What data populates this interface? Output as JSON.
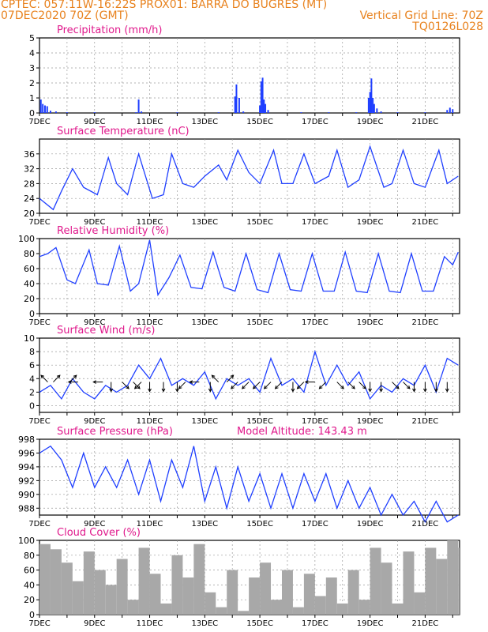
{
  "header": {
    "line1_left": "CPTEC:  057:11W-16:22S  PROX01: BARRA DO BUGRES (MT)",
    "line2_left": "07DEC2020 70Z (GMT)",
    "line2_right": "Vertical Grid Line: 70Z",
    "line3_right": "TQ0126L028"
  },
  "colors": {
    "header": "#e8821e",
    "title": "#e0198c",
    "line": "#1f3fff",
    "cloud": "#a8a8a8",
    "axis": "#000000"
  },
  "x_axis": {
    "ticks": [
      "7DEC",
      "9DEC",
      "11DEC",
      "13DEC",
      "15DEC",
      "17DEC",
      "19DEC",
      "21DEC"
    ],
    "range_days": [
      7,
      22.25
    ]
  },
  "chart_data": [
    {
      "id": "precip",
      "type": "bar",
      "title": "Precipitation (mm/h)",
      "ylim": [
        0,
        5
      ],
      "yticks": [
        "0",
        "1",
        "2",
        "3",
        "4",
        "5"
      ],
      "points": [
        [
          7.05,
          0.9
        ],
        [
          7.12,
          0.6
        ],
        [
          7.2,
          0.5
        ],
        [
          7.28,
          0.45
        ],
        [
          7.4,
          0.15
        ],
        [
          7.6,
          0.1
        ],
        [
          8.0,
          0.05
        ],
        [
          9.0,
          0.05
        ],
        [
          10.5,
          0.05
        ],
        [
          10.6,
          0.9
        ],
        [
          10.7,
          0.1
        ],
        [
          12.0,
          0.05
        ],
        [
          13.5,
          0.05
        ],
        [
          14.1,
          1.1
        ],
        [
          14.15,
          1.9
        ],
        [
          14.25,
          1.0
        ],
        [
          14.4,
          0.1
        ],
        [
          15.0,
          0.5
        ],
        [
          15.05,
          2.1
        ],
        [
          15.1,
          2.35
        ],
        [
          15.15,
          0.9
        ],
        [
          15.2,
          0.6
        ],
        [
          15.3,
          0.2
        ],
        [
          16.5,
          0.05
        ],
        [
          17.5,
          0.05
        ],
        [
          18.5,
          0.05
        ],
        [
          18.95,
          1.0
        ],
        [
          19.0,
          1.4
        ],
        [
          19.05,
          2.3
        ],
        [
          19.1,
          1.0
        ],
        [
          19.15,
          0.6
        ],
        [
          19.25,
          0.3
        ],
        [
          19.4,
          0.1
        ],
        [
          20.0,
          0.05
        ],
        [
          21.0,
          0.05
        ],
        [
          21.8,
          0.2
        ],
        [
          21.9,
          0.35
        ],
        [
          22.0,
          0.25
        ]
      ]
    },
    {
      "id": "temp",
      "type": "line",
      "title": "Surface Temperature (nC)",
      "ylim": [
        20,
        40
      ],
      "yticks": [
        "20",
        "24",
        "28",
        "32",
        "36"
      ],
      "series": [
        {
          "x": [
            7.0,
            7.5,
            7.8,
            8.2,
            8.6,
            9.1,
            9.5,
            9.8,
            10.2,
            10.6,
            11.1,
            11.5,
            11.8,
            12.2,
            12.6,
            13.0,
            13.5,
            13.8,
            14.2,
            14.6,
            15.0,
            15.5,
            15.8,
            16.2,
            16.6,
            17.0,
            17.5,
            17.8,
            18.2,
            18.6,
            19.0,
            19.5,
            19.8,
            20.2,
            20.6,
            21.0,
            21.5,
            21.8,
            22.2
          ],
          "y": [
            24,
            21,
            26,
            32,
            27,
            25,
            35,
            28,
            25,
            36,
            24,
            25,
            36,
            28,
            27,
            30,
            33,
            29,
            37,
            31,
            28,
            37,
            28,
            28,
            36,
            28,
            30,
            37,
            27,
            29,
            38,
            27,
            28,
            37,
            28,
            27,
            37,
            28,
            30
          ]
        }
      ]
    },
    {
      "id": "rh",
      "type": "line",
      "title": "Relative Humidity (%)",
      "ylim": [
        0,
        100
      ],
      "yticks": [
        "0",
        "20",
        "40",
        "60",
        "80",
        "100"
      ],
      "series": [
        {
          "x": [
            7.0,
            7.3,
            7.6,
            8.0,
            8.3,
            8.8,
            9.1,
            9.5,
            9.9,
            10.3,
            10.6,
            11.0,
            11.3,
            11.7,
            12.1,
            12.5,
            12.9,
            13.3,
            13.7,
            14.1,
            14.5,
            14.9,
            15.3,
            15.7,
            16.1,
            16.5,
            16.9,
            17.3,
            17.7,
            18.1,
            18.5,
            18.9,
            19.3,
            19.7,
            20.1,
            20.5,
            20.9,
            21.3,
            21.7,
            22.0,
            22.2
          ],
          "y": [
            76,
            80,
            88,
            45,
            40,
            85,
            40,
            38,
            90,
            30,
            40,
            98,
            25,
            48,
            78,
            35,
            33,
            82,
            35,
            30,
            80,
            32,
            28,
            80,
            32,
            30,
            80,
            30,
            30,
            82,
            30,
            28,
            80,
            30,
            28,
            80,
            30,
            30,
            76,
            65,
            82
          ]
        }
      ]
    },
    {
      "id": "wind",
      "type": "line",
      "title": "Surface Wind (m/s)",
      "ylim": [
        -1,
        10
      ],
      "yticks": [
        "0",
        "2",
        "4",
        "6",
        "8",
        "10"
      ],
      "series": [
        {
          "x": [
            7.0,
            7.4,
            7.8,
            8.2,
            8.6,
            9.0,
            9.4,
            9.8,
            10.2,
            10.6,
            11.0,
            11.4,
            11.8,
            12.2,
            12.6,
            13.0,
            13.4,
            13.8,
            14.2,
            14.6,
            15.0,
            15.4,
            15.8,
            16.2,
            16.6,
            17.0,
            17.4,
            17.8,
            18.2,
            18.6,
            19.0,
            19.4,
            19.8,
            20.2,
            20.6,
            21.0,
            21.4,
            21.8,
            22.2
          ],
          "y": [
            2,
            3,
            1,
            4,
            2,
            1,
            3,
            2,
            3,
            6,
            4,
            7,
            3,
            4,
            3,
            5,
            1,
            4,
            3,
            4,
            2,
            7,
            3,
            4,
            2,
            8,
            3,
            6,
            3,
            5,
            1,
            3,
            2,
            4,
            3,
            6,
            2,
            7,
            6
          ]
        }
      ],
      "arrows": [
        [
          7.3,
          "NW"
        ],
        [
          7.5,
          "NE"
        ],
        [
          8.1,
          "NE"
        ],
        [
          8.4,
          "W"
        ],
        [
          9.3,
          "W"
        ],
        [
          9.6,
          "S"
        ],
        [
          10.0,
          "SE"
        ],
        [
          10.4,
          "SE"
        ],
        [
          10.7,
          "SW"
        ],
        [
          11.0,
          "S"
        ],
        [
          11.5,
          "S"
        ],
        [
          12.0,
          "S"
        ],
        [
          12.3,
          "SW"
        ],
        [
          12.8,
          "W"
        ],
        [
          13.2,
          "S"
        ],
        [
          13.5,
          "NW"
        ],
        [
          13.8,
          "NE"
        ],
        [
          14.2,
          "SW"
        ],
        [
          14.6,
          "SW"
        ],
        [
          15.0,
          "SW"
        ],
        [
          15.4,
          "SW"
        ],
        [
          15.8,
          "SW"
        ],
        [
          16.2,
          "S"
        ],
        [
          16.6,
          "SW"
        ],
        [
          17.0,
          "W"
        ],
        [
          17.4,
          "SW"
        ],
        [
          17.8,
          "SE"
        ],
        [
          18.2,
          "SE"
        ],
        [
          18.6,
          "SE"
        ],
        [
          19.0,
          "S"
        ],
        [
          19.4,
          "S"
        ],
        [
          19.8,
          "SE"
        ],
        [
          20.2,
          "SE"
        ],
        [
          20.6,
          "S"
        ],
        [
          21.0,
          "S"
        ],
        [
          21.4,
          "S"
        ],
        [
          21.8,
          "S"
        ]
      ]
    },
    {
      "id": "press",
      "type": "line",
      "title": "Surface Pressure (hPa)",
      "note": "Model Altitude: 143.43 m",
      "ylim": [
        987,
        998
      ],
      "yticks": [
        "988",
        "990",
        "992",
        "994",
        "996",
        "998"
      ],
      "series": [
        {
          "x": [
            7.0,
            7.4,
            7.8,
            8.2,
            8.6,
            9.0,
            9.4,
            9.8,
            10.2,
            10.6,
            11.0,
            11.4,
            11.8,
            12.2,
            12.6,
            13.0,
            13.4,
            13.8,
            14.2,
            14.6,
            15.0,
            15.4,
            15.8,
            16.2,
            16.6,
            17.0,
            17.4,
            17.8,
            18.2,
            18.6,
            19.0,
            19.4,
            19.8,
            20.2,
            20.6,
            21.0,
            21.4,
            21.8,
            22.2
          ],
          "y": [
            996,
            997,
            995,
            991,
            996,
            991,
            994,
            991,
            995,
            990,
            995,
            989,
            995,
            991,
            997,
            989,
            994,
            988,
            994,
            989,
            993,
            988,
            993,
            988,
            993,
            989,
            993,
            988,
            992,
            988,
            991,
            987,
            990,
            987,
            989,
            986,
            989,
            986,
            987
          ]
        }
      ]
    },
    {
      "id": "cloud",
      "type": "bar",
      "title": "Cloud Cover (%)",
      "ylim": [
        0,
        100
      ],
      "yticks": [
        "0",
        "20",
        "40",
        "60",
        "80",
        "100"
      ],
      "series_note": "hourly cloud cover bars",
      "points": [
        [
          7.0,
          95
        ],
        [
          7.4,
          88
        ],
        [
          7.8,
          70
        ],
        [
          8.2,
          45
        ],
        [
          8.6,
          85
        ],
        [
          9.0,
          60
        ],
        [
          9.4,
          40
        ],
        [
          9.8,
          75
        ],
        [
          10.2,
          20
        ],
        [
          10.6,
          90
        ],
        [
          11.0,
          55
        ],
        [
          11.4,
          15
        ],
        [
          11.8,
          80
        ],
        [
          12.2,
          50
        ],
        [
          12.6,
          95
        ],
        [
          13.0,
          30
        ],
        [
          13.4,
          10
        ],
        [
          13.8,
          60
        ],
        [
          14.2,
          5
        ],
        [
          14.6,
          50
        ],
        [
          15.0,
          70
        ],
        [
          15.4,
          20
        ],
        [
          15.8,
          60
        ],
        [
          16.2,
          10
        ],
        [
          16.6,
          55
        ],
        [
          17.0,
          25
        ],
        [
          17.4,
          50
        ],
        [
          17.8,
          15
        ],
        [
          18.2,
          60
        ],
        [
          18.6,
          20
        ],
        [
          19.0,
          90
        ],
        [
          19.4,
          70
        ],
        [
          19.8,
          15
        ],
        [
          20.2,
          85
        ],
        [
          20.6,
          30
        ],
        [
          21.0,
          90
        ],
        [
          21.4,
          75
        ],
        [
          21.8,
          100
        ],
        [
          22.2,
          90
        ]
      ]
    }
  ]
}
